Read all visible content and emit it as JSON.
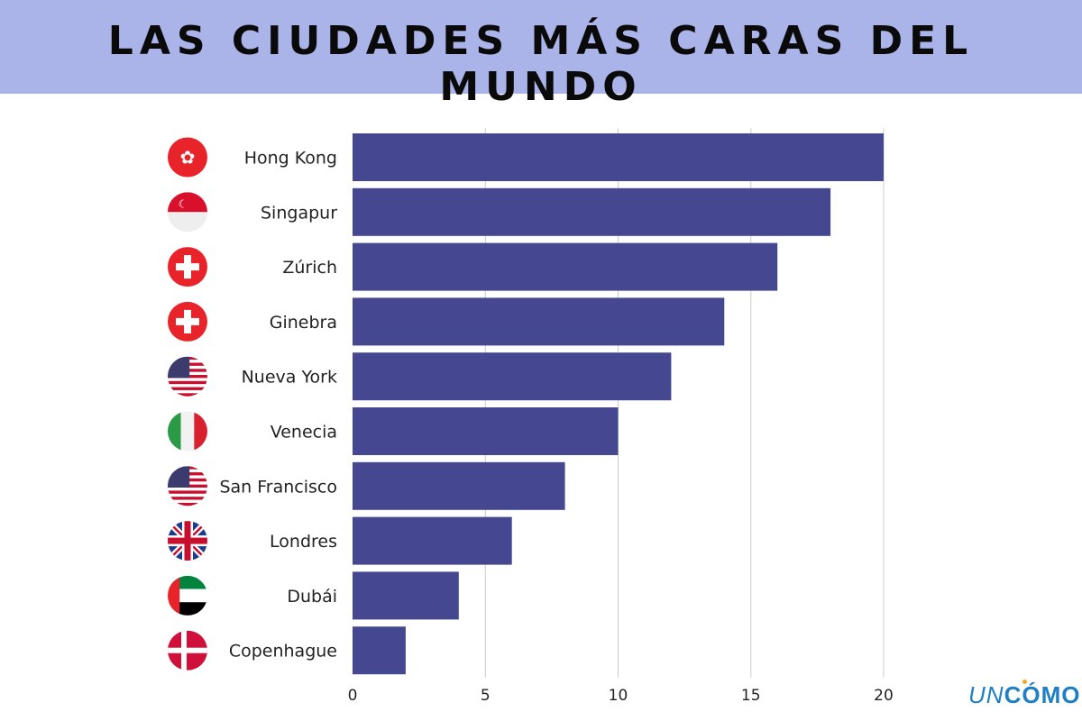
{
  "header": {
    "title": "LAS CIUDADES MÁS CARAS DEL MUNDO"
  },
  "logo": {
    "part1": "UN",
    "part2": "CÓMO"
  },
  "chart_data": {
    "type": "bar",
    "orientation": "horizontal",
    "categories": [
      "Hong Kong",
      "Singapur",
      "Zúrich",
      "Ginebra",
      "Nueva York",
      "Venecia",
      "San Francisco",
      "Londres",
      "Dubái",
      "Copenhague"
    ],
    "flags": [
      "hong-kong",
      "singapore",
      "switzerland",
      "switzerland",
      "usa",
      "italy",
      "usa",
      "uk",
      "uae",
      "denmark"
    ],
    "values": [
      20,
      18,
      16,
      14,
      12,
      10,
      8,
      6,
      4,
      2
    ],
    "xlim": [
      0,
      20
    ],
    "xticks": [
      "0",
      "5",
      "10",
      "15",
      "20"
    ],
    "grid": true,
    "bar_color": "#454890",
    "title": "LAS CIUDADES MÁS CARAS DEL MUNDO"
  }
}
